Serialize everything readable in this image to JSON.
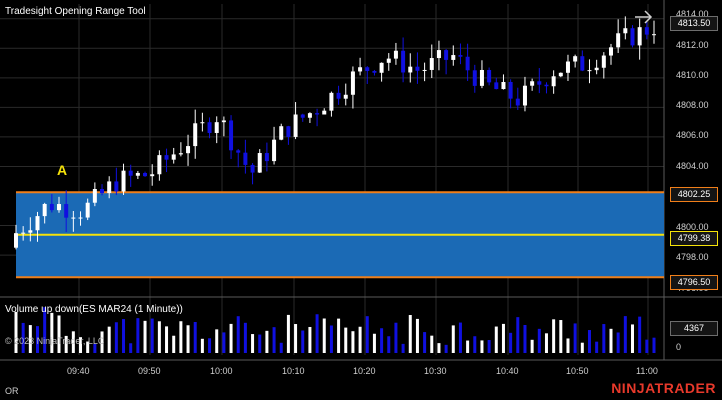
{
  "window": {
    "title": "Tradesight Opening Range Tool"
  },
  "marker": {
    "label": "A"
  },
  "price_axis": {
    "ticks": [
      "4814.00",
      "4812.00",
      "4810.00",
      "4808.00",
      "4806.00",
      "4804.00",
      "4800.00",
      "4798.00",
      "4796.00"
    ],
    "badges": {
      "last_price": "4813.50",
      "range_high": "4802.25",
      "range_mid": "4799.38",
      "range_low": "4796.50"
    }
  },
  "indicator": {
    "title": "Volume up down(ES MAR24 (1 Minute))",
    "last_volume": "4367",
    "zero_label": "0"
  },
  "time_axis": {
    "labels": [
      "09:40",
      "09:50",
      "10:00",
      "10:10",
      "10:20",
      "10:30",
      "10:40",
      "10:50",
      "11:00"
    ]
  },
  "copyright": "© 2023 NinjaTrader, LLC",
  "status": {
    "left_text": "OR"
  },
  "brand": "NINJATRADER",
  "colors": {
    "up": "#ffffff",
    "down": "#1010e0",
    "range_fill": "#1b6ab5",
    "range_border": "#f07f1a",
    "mid_line": "#f5e20a",
    "grid": "#2a2a2a"
  },
  "chart_data": {
    "type": "candlestick",
    "title": "Tradesight Opening Range Tool",
    "x": [
      "09:30",
      "09:35",
      "09:40",
      "09:45",
      "09:50",
      "09:55",
      "10:00",
      "10:05",
      "10:10",
      "10:15",
      "10:20",
      "10:25",
      "10:30",
      "10:35",
      "10:40",
      "10:45",
      "10:50",
      "10:55",
      "11:00",
      "11:02"
    ],
    "close": [
      4799.5,
      4801.5,
      4801.0,
      4803.0,
      4803.5,
      4805.5,
      4807.5,
      4803.5,
      4806.5,
      4808.0,
      4810.0,
      4811.5,
      4810.5,
      4811.5,
      4809.5,
      4808.5,
      4810.5,
      4811.0,
      4812.5,
      4813.5
    ],
    "ylim": [
      4795.5,
      4815.0
    ],
    "opening_range": {
      "high": 4802.25,
      "mid": 4799.38,
      "low": 4796.5
    },
    "last_price": 4813.5,
    "volume_last": 4367
  }
}
